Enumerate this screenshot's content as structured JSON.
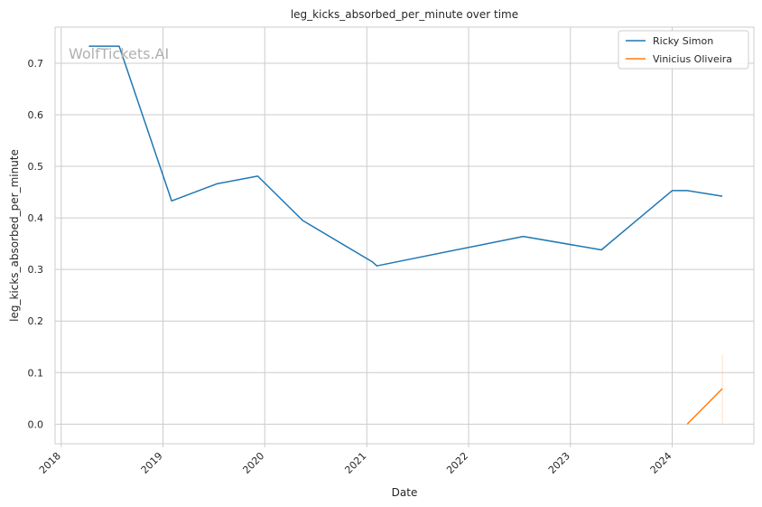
{
  "chart_data": {
    "type": "line",
    "title": "leg_kicks_absorbed_per_minute over time",
    "xlabel": "Date",
    "ylabel": "leg_kicks_absorbed_per_minute",
    "watermark": "WolfTickets.AI",
    "xlim": [
      "2017-12-10",
      "2024-10-20"
    ],
    "ylim": [
      -0.038,
      0.77
    ],
    "x_ticks": [
      "2018",
      "2019",
      "2020",
      "2021",
      "2022",
      "2023",
      "2024"
    ],
    "y_ticks": [
      "0.0",
      "0.1",
      "0.2",
      "0.3",
      "0.4",
      "0.5",
      "0.6",
      "0.7"
    ],
    "grid": true,
    "legend_position": "top-right",
    "series": [
      {
        "name": "Ricky Simon",
        "color": "#1f77b4",
        "points": [
          {
            "x": "2018-04-10",
            "y": 0.733
          },
          {
            "x": "2018-07-28",
            "y": 0.733
          },
          {
            "x": "2019-02-01",
            "y": 0.433
          },
          {
            "x": "2019-07-13",
            "y": 0.466
          },
          {
            "x": "2019-12-07",
            "y": 0.481
          },
          {
            "x": "2020-05-16",
            "y": 0.395
          },
          {
            "x": "2021-01-20",
            "y": 0.315
          },
          {
            "x": "2021-02-06",
            "y": 0.307
          },
          {
            "x": "2022-07-16",
            "y": 0.364
          },
          {
            "x": "2023-04-22",
            "y": 0.338
          },
          {
            "x": "2024-01-01",
            "y": 0.453
          },
          {
            "x": "2024-02-24",
            "y": 0.453
          },
          {
            "x": "2024-06-29",
            "y": 0.442
          }
        ]
      },
      {
        "name": "Vinicius Oliveira",
        "color": "#ff7f0e",
        "points": [
          {
            "x": "2024-02-24",
            "y": 0.0
          },
          {
            "x": "2024-06-29",
            "y": 0.069
          }
        ],
        "band": {
          "x": "2024-06-29",
          "low": 0.0,
          "high": 0.135
        }
      }
    ]
  }
}
